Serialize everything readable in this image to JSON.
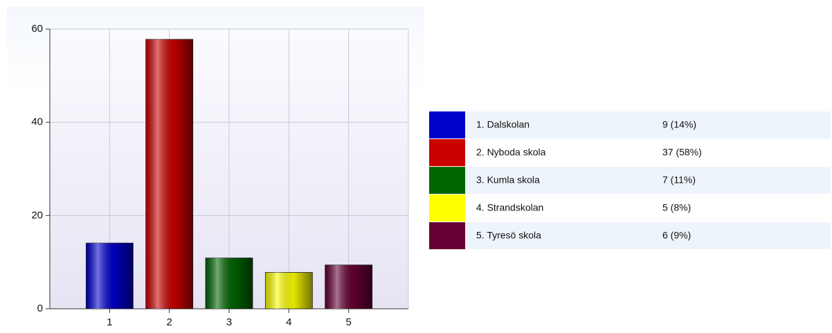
{
  "chart_data": {
    "type": "bar",
    "categories": [
      "1",
      "2",
      "3",
      "4",
      "5"
    ],
    "values": [
      14.1,
      57.8,
      10.9,
      7.8,
      9.4
    ],
    "colors": [
      "#0000cc",
      "#cc0000",
      "#006600",
      "#ffff00",
      "#660033"
    ],
    "ylim": [
      0,
      60
    ],
    "yticks": [
      0,
      20,
      40,
      60
    ],
    "grid": true,
    "legend": [
      {
        "label": "1. Dalskolan",
        "value_label": "9 (14%)"
      },
      {
        "label": "2. Nyboda skola",
        "value_label": "37 (58%)"
      },
      {
        "label": "3. Kumla skola",
        "value_label": "7 (11%)"
      },
      {
        "label": "4. Strandskolan",
        "value_label": "5 (8%)"
      },
      {
        "label": "5. Tyresö skola",
        "value_label": "6 (9%)"
      }
    ]
  }
}
